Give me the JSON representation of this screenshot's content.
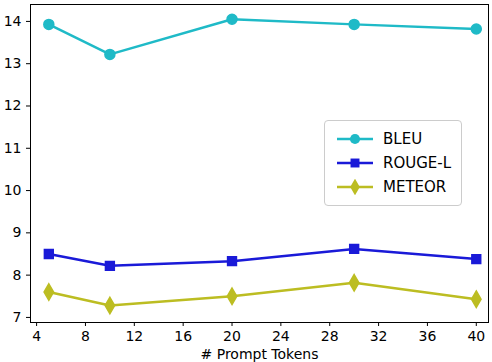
{
  "chart_data": {
    "type": "line",
    "x_label": "# Prompt Tokens",
    "x": [
      5,
      10,
      20,
      30,
      40
    ],
    "series": [
      {
        "name": "BLEU",
        "color": "#1fbac7",
        "marker": "circle",
        "line_style": "solid",
        "values": [
          13.93,
          13.22,
          14.05,
          13.93,
          13.82
        ]
      },
      {
        "name": "ROUGE-L",
        "color": "#1a1ad8",
        "marker": "square",
        "line_style": "solid",
        "values": [
          8.5,
          8.22,
          8.33,
          8.62,
          8.38
        ]
      },
      {
        "name": "METEOR",
        "color": "#bcbd22",
        "marker": "diamond",
        "line_style": "solid",
        "values": [
          7.6,
          7.28,
          7.5,
          7.82,
          7.43
        ]
      }
    ],
    "xlim": [
      3.5,
      41
    ],
    "xticks": [
      4,
      8,
      12,
      16,
      20,
      24,
      28,
      32,
      36,
      40
    ],
    "ylim": [
      6.88,
      14.4
    ],
    "yticks": [
      7,
      8,
      9,
      10,
      11,
      12,
      13,
      14
    ],
    "grid": false,
    "legend": "center right"
  }
}
